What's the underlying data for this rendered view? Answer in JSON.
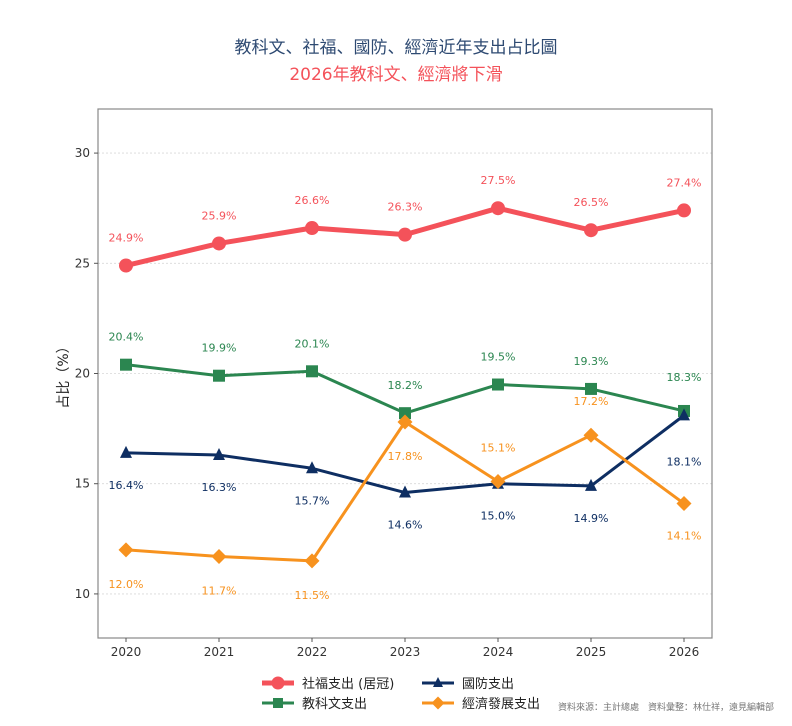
{
  "chart_data": {
    "type": "line",
    "title": "教科文、社福、國防、經濟近年支出占比圖",
    "subtitle": "2026年教科文、經濟將下滑",
    "xlabel": "",
    "ylabel": "占比（%）",
    "x": [
      "2020",
      "2021",
      "2022",
      "2023",
      "2024",
      "2025",
      "2026"
    ],
    "ylim": [
      8,
      32
    ],
    "yticks": [
      "10",
      "15",
      "20",
      "25",
      "30"
    ],
    "grid": true,
    "legend_position": "bottom-center",
    "series": [
      {
        "name": "社福支出 (居冠)",
        "color": "#f4525a",
        "marker": "circle",
        "values": [
          24.9,
          25.9,
          26.6,
          26.3,
          27.5,
          26.5,
          27.4
        ],
        "labels": [
          "24.9%",
          "25.9%",
          "26.6%",
          "26.3%",
          "27.5%",
          "26.5%",
          "27.4%"
        ],
        "label_pos": "above"
      },
      {
        "name": "教科文支出",
        "color": "#2b8650",
        "marker": "square",
        "values": [
          20.4,
          19.9,
          20.1,
          18.2,
          19.5,
          19.3,
          18.3
        ],
        "labels": [
          "20.4%",
          "19.9%",
          "20.1%",
          "18.2%",
          "19.5%",
          "19.3%",
          "18.3%"
        ],
        "label_pos": "above"
      },
      {
        "name": "國防支出",
        "color": "#0e2e62",
        "marker": "triangle",
        "values": [
          16.4,
          16.3,
          15.7,
          14.6,
          15.0,
          14.9,
          18.1
        ],
        "labels": [
          "16.4%",
          "16.3%",
          "15.7%",
          "14.6%",
          "15.0%",
          "14.9%",
          "18.1%"
        ],
        "label_pos": "below"
      },
      {
        "name": "經濟發展支出",
        "color": "#f7921e",
        "marker": "diamond",
        "values": [
          12.0,
          11.7,
          11.5,
          17.8,
          15.1,
          17.2,
          14.1
        ],
        "labels": [
          "12.0%",
          "11.7%",
          "11.5%",
          "17.8%",
          "15.1%",
          "17.2%",
          "14.1%"
        ],
        "label_pos": "below"
      }
    ],
    "source_note": "資料來源：主計總處　資料彙整：林仕祥，遠見編輯部"
  }
}
